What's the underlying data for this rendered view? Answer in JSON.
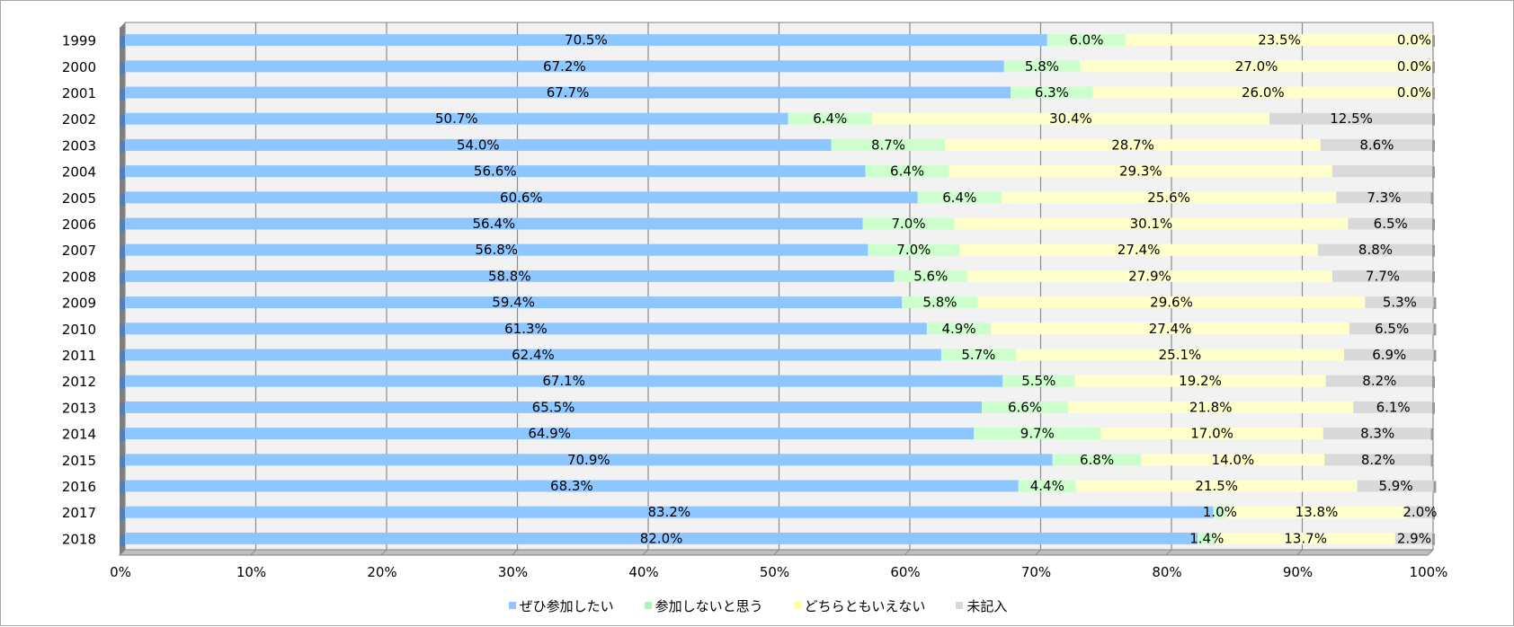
{
  "chart_data": {
    "type": "bar",
    "orientation": "horizontal",
    "stacked": "percent",
    "categories": [
      "1999",
      "2000",
      "2001",
      "2002",
      "2003",
      "2004",
      "2005",
      "2006",
      "2007",
      "2008",
      "2009",
      "2010",
      "2011",
      "2012",
      "2013",
      "2014",
      "2015",
      "2016",
      "2017",
      "2018"
    ],
    "series": [
      {
        "name": "ぜひ参加したい",
        "color": "#8ec6ff",
        "values": [
          70.5,
          67.2,
          67.7,
          50.7,
          54.0,
          56.6,
          60.6,
          56.4,
          56.8,
          58.8,
          59.4,
          61.3,
          62.4,
          67.1,
          65.5,
          64.9,
          70.9,
          68.3,
          83.2,
          82.0
        ],
        "labels": [
          "70.5%",
          "67.2%",
          "67.7%",
          "50.7%",
          "54.0%",
          "56.6%",
          "60.6%",
          "56.4%",
          "56.8%",
          "58.8%",
          "59.4%",
          "61.3%",
          "62.4%",
          "67.1%",
          "65.5%",
          "64.9%",
          "70.9%",
          "68.3%",
          "83.2%",
          "82.0%"
        ]
      },
      {
        "name": "参加しないと思う",
        "color": "#ccffcc",
        "values": [
          6.0,
          5.8,
          6.3,
          6.4,
          8.7,
          6.4,
          6.4,
          7.0,
          7.0,
          5.6,
          5.8,
          4.9,
          5.7,
          5.5,
          6.6,
          9.7,
          6.8,
          4.4,
          1.0,
          1.4
        ],
        "labels": [
          "6.0%",
          "5.8%",
          "6.3%",
          "6.4%",
          "8.7%",
          "6.4%",
          "6.4%",
          "7.0%",
          "7.0%",
          "5.6%",
          "5.8%",
          "4.9%",
          "5.7%",
          "5.5%",
          "6.6%",
          "9.7%",
          "6.8%",
          "4.4%",
          "1.0%",
          "1.4%"
        ]
      },
      {
        "name": "どちらともいえない",
        "color": "#ffffcc",
        "values": [
          23.5,
          27.0,
          26.0,
          30.4,
          28.7,
          29.3,
          25.6,
          30.1,
          27.4,
          27.9,
          29.6,
          27.4,
          25.1,
          19.2,
          21.8,
          17.0,
          14.0,
          21.5,
          13.8,
          13.7
        ],
        "labels": [
          "23.5%",
          "27.0%",
          "26.0%",
          "30.4%",
          "28.7%",
          "29.3%",
          "25.6%",
          "30.1%",
          "27.4%",
          "27.9%",
          "29.6%",
          "27.4%",
          "25.1%",
          "19.2%",
          "21.8%",
          "17.0%",
          "14.0%",
          "21.5%",
          "13.8%",
          "13.7%"
        ]
      },
      {
        "name": "未記入",
        "color": "#d9d9d9",
        "values": [
          0.0,
          0.0,
          0.0,
          12.5,
          8.6,
          7.7,
          7.3,
          6.5,
          8.8,
          7.7,
          5.3,
          6.5,
          6.9,
          8.2,
          6.1,
          8.3,
          8.2,
          5.9,
          2.0,
          2.9
        ],
        "labels": [
          "0.0%",
          "0.0%",
          "0.0%",
          "12.5%",
          "8.6%",
          "",
          "7.3%",
          "6.5%",
          "8.8%",
          "7.7%",
          "5.3%",
          "6.5%",
          "6.9%",
          "8.2%",
          "6.1%",
          "8.3%",
          "8.2%",
          "5.9%",
          "2.0%",
          "2.9%"
        ]
      }
    ],
    "xticks": [
      "0%",
      "10%",
      "20%",
      "30%",
      "40%",
      "50%",
      "60%",
      "70%",
      "80%",
      "90%",
      "100%"
    ],
    "xlim": [
      0,
      100
    ],
    "grid": true,
    "legend_position": "bottom",
    "title": "",
    "xlabel": "",
    "ylabel": ""
  }
}
